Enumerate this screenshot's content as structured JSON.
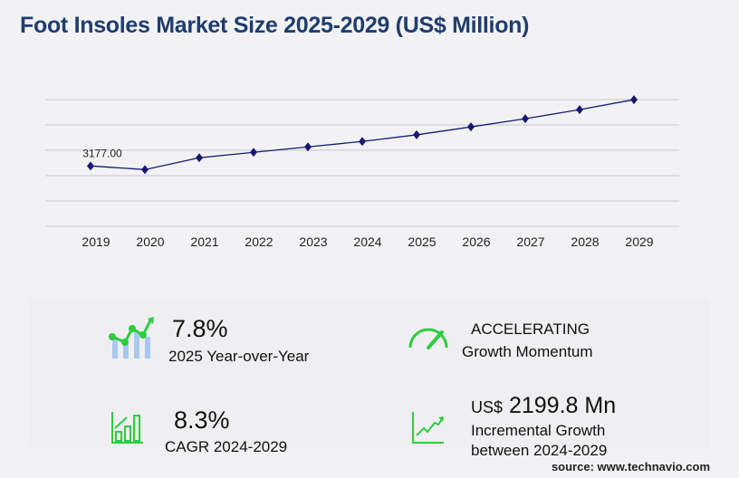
{
  "title": "Foot Insoles Market Size 2025-2029 (US$ Million)",
  "chart_data": {
    "type": "line",
    "title": "Foot Insoles Market Size 2025-2029 (US$ Million)",
    "categories": [
      "2019",
      "2020",
      "2021",
      "2022",
      "2023",
      "2024",
      "2025",
      "2026",
      "2027",
      "2028",
      "2029"
    ],
    "values": [
      3177.0,
      2986,
      3607,
      3894,
      4181,
      4467,
      4815,
      5232,
      5663,
      6141,
      6667
    ],
    "data_labels": {
      "0": "3177.00"
    },
    "ylim": [
      0,
      6670
    ],
    "grid": true,
    "line_color": "#191970"
  },
  "stats": {
    "yoy_value": "7.8%",
    "yoy_label": "2025 Year-over-Year",
    "momentum_value": "ACCELERATING",
    "momentum_label": "Growth Momentum",
    "cagr_value": "8.3%",
    "cagr_label": "CAGR 2024-2029",
    "incr_prefix": "US$",
    "incr_value": "2199.8 Mn",
    "incr_label1": "Incremental Growth",
    "incr_label2": "between 2024-2029"
  },
  "source": "source: www.technavio.com",
  "colors": {
    "accent": "#2ecc40",
    "title": "#1f3d6e",
    "bars": "#a9c8f0"
  }
}
